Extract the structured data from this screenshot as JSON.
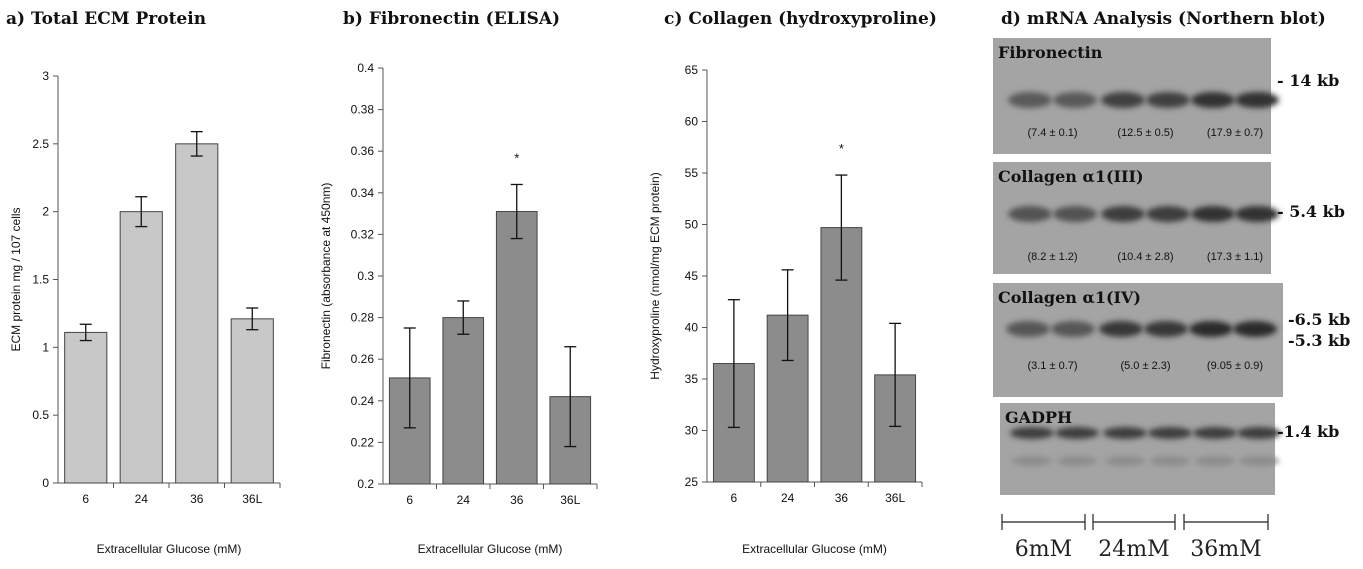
{
  "charts": [
    {
      "title": "a) Total ECM Protein",
      "chart_data": {
        "type": "bar",
        "categories": [
          "6",
          "24",
          "36",
          "36L"
        ],
        "values": [
          1.11,
          2.0,
          2.5,
          1.21
        ],
        "errors": [
          0.06,
          0.11,
          0.09,
          0.08
        ],
        "ylim": [
          0,
          3
        ],
        "yticks": [
          "0",
          "0.5",
          "1",
          "1.5",
          "2",
          "2.5",
          "3"
        ],
        "xlabel": "Extracellular Glucose (mM)",
        "ylabel": "ECM protein mg / 107 cells",
        "grid": false,
        "bar_color": "#c8c8c8",
        "annotations": []
      }
    },
    {
      "title": "b) Fibronectin (ELISA)",
      "chart_data": {
        "type": "bar",
        "categories": [
          "6",
          "24",
          "36",
          "36L"
        ],
        "values": [
          0.251,
          0.28,
          0.331,
          0.242
        ],
        "errors": [
          0.024,
          0.008,
          0.013,
          0.024
        ],
        "ylim": [
          0.2,
          0.4
        ],
        "yticks": [
          "0.2",
          "0.22",
          "0.24",
          "0.26",
          "0.28",
          "0.3",
          "0.32",
          "0.34",
          "0.36",
          "0.38",
          "0.4"
        ],
        "xlabel": "Extracellular Glucose (mM)",
        "ylabel": "Fibronectin (absorbance at 450nm)",
        "grid": false,
        "bar_color": "#8c8c8c",
        "annotations": [
          {
            "category": "36",
            "text": "*"
          }
        ]
      }
    },
    {
      "title": "c) Collagen (hydroxyproline)",
      "chart_data": {
        "type": "bar",
        "categories": [
          "6",
          "24",
          "36",
          "36L"
        ],
        "values": [
          36.5,
          41.2,
          49.7,
          35.4
        ],
        "errors": [
          6.2,
          4.4,
          5.1,
          5.0
        ],
        "ylim": [
          25,
          65
        ],
        "yticks": [
          "25",
          "30",
          "35",
          "40",
          "45",
          "50",
          "55",
          "60",
          "65"
        ],
        "xlabel": "Extracellular Glucose (mM)",
        "ylabel": "Hydroxyproline (nmol/mg ECM protein)",
        "grid": false,
        "bar_color": "#8c8c8c",
        "annotations": [
          {
            "category": "36",
            "text": "*"
          }
        ]
      }
    }
  ],
  "blot": {
    "title": "d) mRNA Analysis (Northern blot)",
    "panels": [
      {
        "label": "Fibronectin",
        "sizes": [
          "- 14 kb"
        ],
        "values": [
          "(7.4 ± 0.1)",
          "(12.5 ± 0.5)",
          "(17.9 ± 0.7)"
        ],
        "band_strength": [
          0.35,
          0.65,
          0.85
        ]
      },
      {
        "label": "Collagen α1(III)",
        "sizes": [
          "- 5.4 kb"
        ],
        "values": [
          "(8.2 ± 1.2)",
          "(10.4 ± 2.8)",
          "(17.3 ± 1.1)"
        ],
        "band_strength": [
          0.45,
          0.7,
          0.85
        ]
      },
      {
        "label": "Collagen α1(IV)",
        "sizes": [
          "-6.5 kb",
          "-5.3 kb"
        ],
        "values": [
          "(3.1 ± 0.7)",
          "(5.0 ± 2.3)",
          "(9.05 ± 0.9)"
        ],
        "band_strength": [
          0.4,
          0.75,
          0.9
        ]
      },
      {
        "label": "GADPH",
        "sizes": [
          "-1.4 kb"
        ],
        "values": [],
        "band_strength": [
          0.7,
          0.7,
          0.7
        ]
      }
    ],
    "groups": [
      "6mM",
      "24mM",
      "36mM"
    ]
  }
}
